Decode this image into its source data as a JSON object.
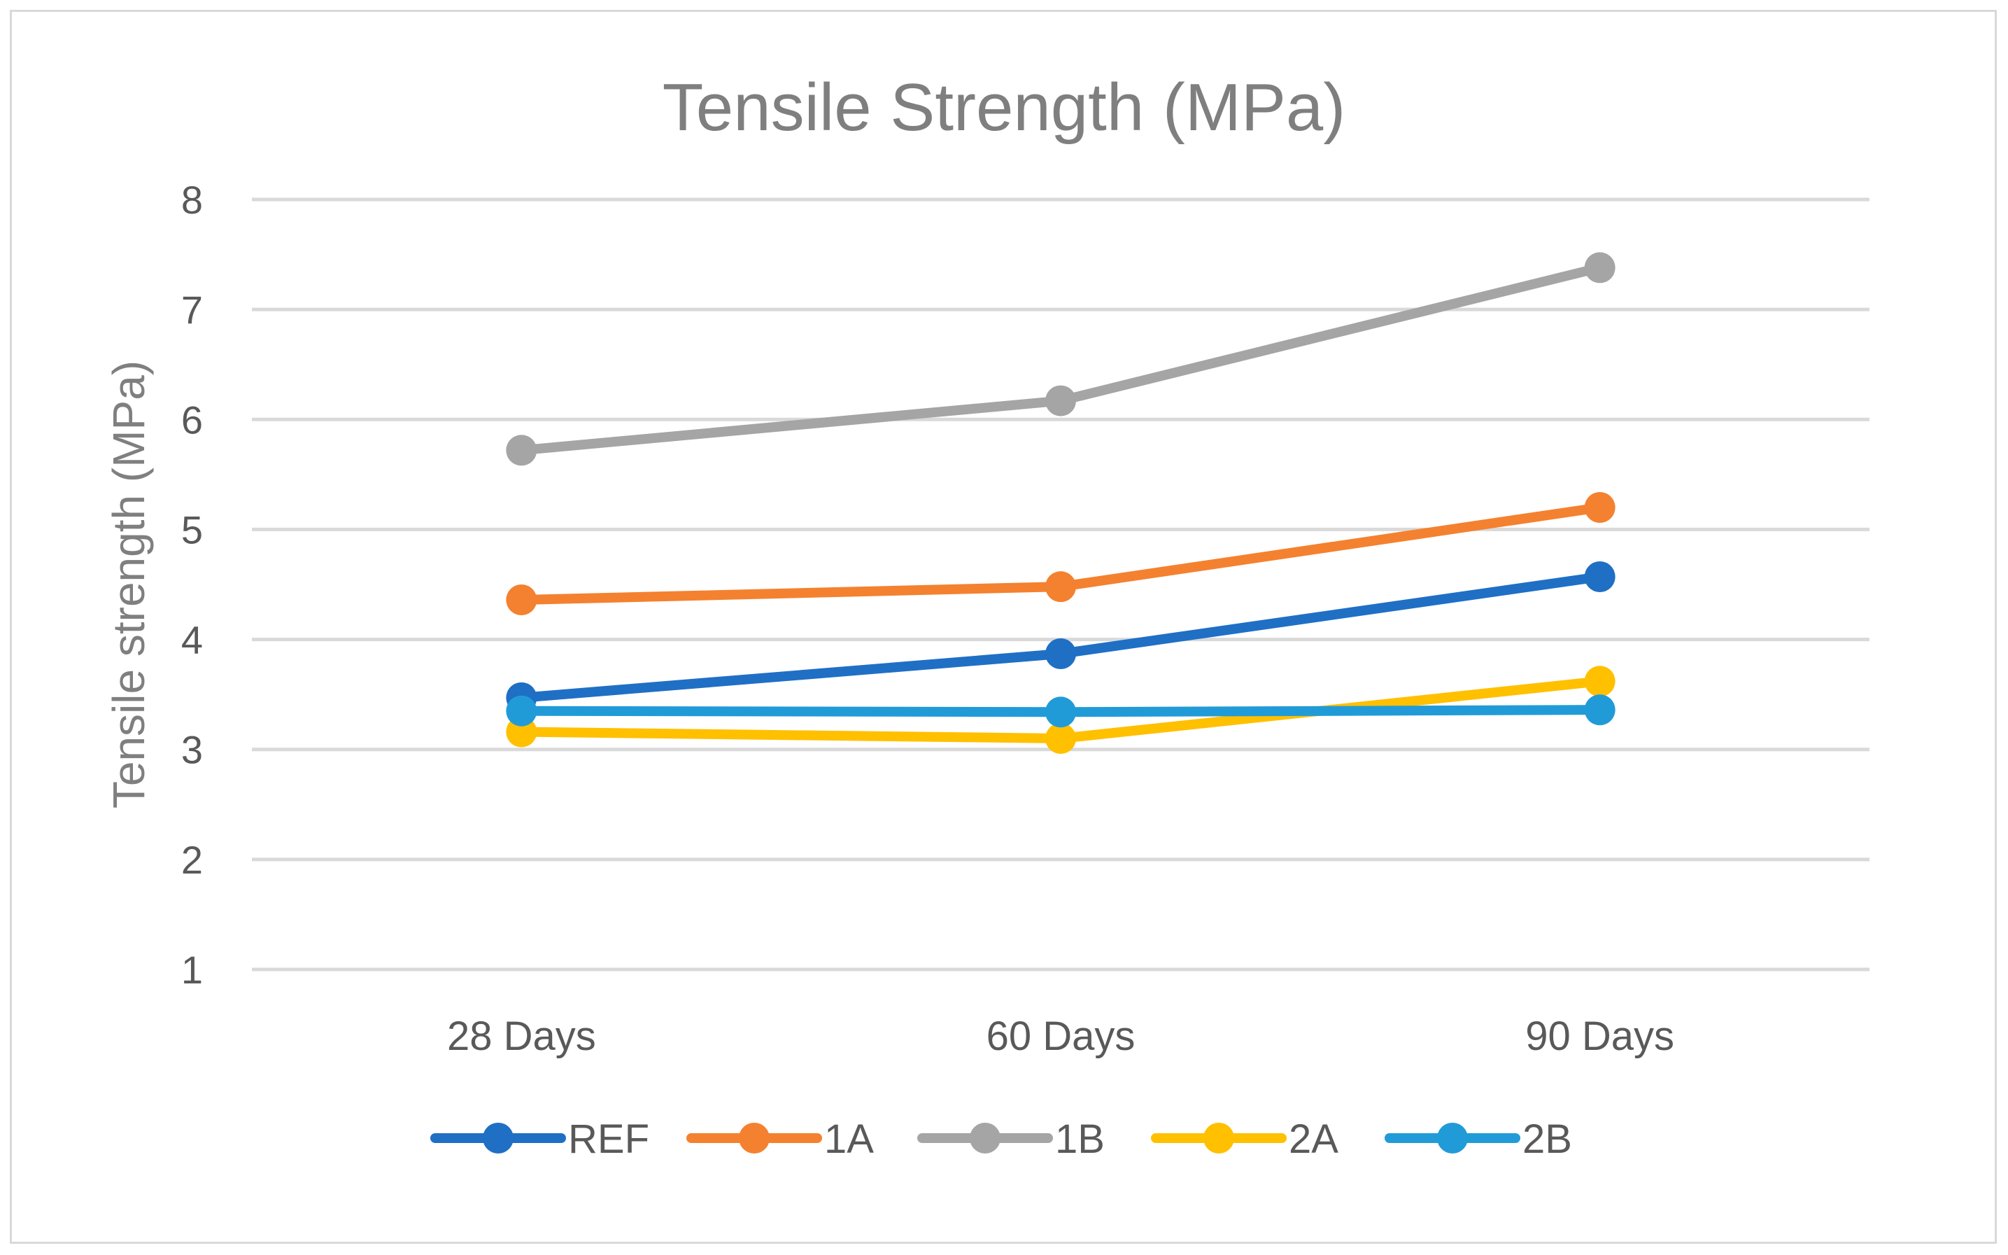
{
  "chart_data": {
    "type": "line",
    "title": "Tensile Strength (MPa)",
    "xlabel": "",
    "ylabel": "Tensile strength  (MPa)",
    "categories": [
      "28 Days",
      "60 Days",
      "90 Days"
    ],
    "ylim": [
      1,
      8
    ],
    "yticks": [
      1,
      2,
      3,
      4,
      5,
      6,
      7,
      8
    ],
    "grid": true,
    "legend_position": "bottom",
    "series": [
      {
        "name": "REF",
        "color": "#1f6fc5",
        "values": [
          3.47,
          3.87,
          4.57
        ]
      },
      {
        "name": "1A",
        "color": "#f4812f",
        "values": [
          4.36,
          4.48,
          5.2
        ]
      },
      {
        "name": "1B",
        "color": "#a5a5a5",
        "values": [
          5.72,
          6.17,
          7.38
        ]
      },
      {
        "name": "2A",
        "color": "#ffc000",
        "values": [
          3.16,
          3.1,
          3.62
        ]
      },
      {
        "name": "2B",
        "color": "#219bd8",
        "values": [
          3.35,
          3.34,
          3.36
        ]
      }
    ]
  }
}
